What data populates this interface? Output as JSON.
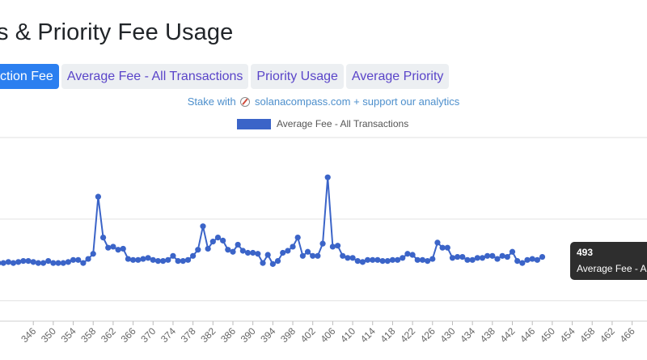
{
  "page": {
    "title": "s & Priority Fee Usage"
  },
  "tabs": [
    {
      "label": "ction Fee",
      "active": true
    },
    {
      "label": "Average Fee - All Transactions",
      "active": false
    },
    {
      "label": "Priority Usage",
      "active": false
    },
    {
      "label": "Average Priority",
      "active": false
    }
  ],
  "promo": {
    "before": "Stake with",
    "after": "solanacompass.com + support our analytics"
  },
  "colors": {
    "series": "#3b64c8",
    "tab_active": "#2b7ff0",
    "tab_text": "#5a45c9"
  },
  "tooltip": {
    "title": "493",
    "body": "Average Fee - A"
  },
  "chart_data": {
    "type": "line",
    "grid": true,
    "legend": "top-center",
    "series": [
      {
        "name": "Average Fee - All Transactions",
        "x_start": 339,
        "values": [
          0.37,
          0.37,
          0.38,
          0.37,
          0.38,
          0.39,
          0.39,
          0.38,
          0.37,
          0.37,
          0.39,
          0.37,
          0.37,
          0.37,
          0.38,
          0.4,
          0.4,
          0.37,
          0.41,
          0.46,
          1.02,
          0.62,
          0.52,
          0.53,
          0.5,
          0.51,
          0.41,
          0.4,
          0.4,
          0.41,
          0.42,
          0.4,
          0.39,
          0.39,
          0.4,
          0.44,
          0.39,
          0.39,
          0.4,
          0.44,
          0.5,
          0.73,
          0.51,
          0.58,
          0.62,
          0.59,
          0.5,
          0.48,
          0.55,
          0.49,
          0.47,
          0.47,
          0.46,
          0.37,
          0.45,
          0.36,
          0.39,
          0.47,
          0.49,
          0.53,
          0.62,
          0.44,
          0.48,
          0.44,
          0.44,
          0.56,
          1.21,
          0.53,
          0.54,
          0.44,
          0.42,
          0.42,
          0.39,
          0.38,
          0.4,
          0.4,
          0.4,
          0.39,
          0.39,
          0.4,
          0.4,
          0.42,
          0.46,
          0.45,
          0.4,
          0.4,
          0.39,
          0.41,
          0.57,
          0.52,
          0.52,
          0.42,
          0.43,
          0.43,
          0.4,
          0.4,
          0.42,
          0.42,
          0.44,
          0.44,
          0.41,
          0.44,
          0.43,
          0.48,
          0.39,
          0.37,
          0.4,
          0.41,
          0.4,
          0.43
        ]
      }
    ],
    "x_ticks": [
      "346",
      "350",
      "354",
      "358",
      "362",
      "366",
      "370",
      "374",
      "378",
      "382",
      "386",
      "390",
      "394",
      "398",
      "402",
      "406",
      "410",
      "414",
      "418",
      "422",
      "426",
      "430",
      "434",
      "438",
      "442",
      "446",
      "450",
      "454",
      "458",
      "462",
      "466"
    ],
    "x_tick_start": 346,
    "x_tick_step": 4,
    "ylim": [
      -0.2,
      1.6
    ]
  }
}
